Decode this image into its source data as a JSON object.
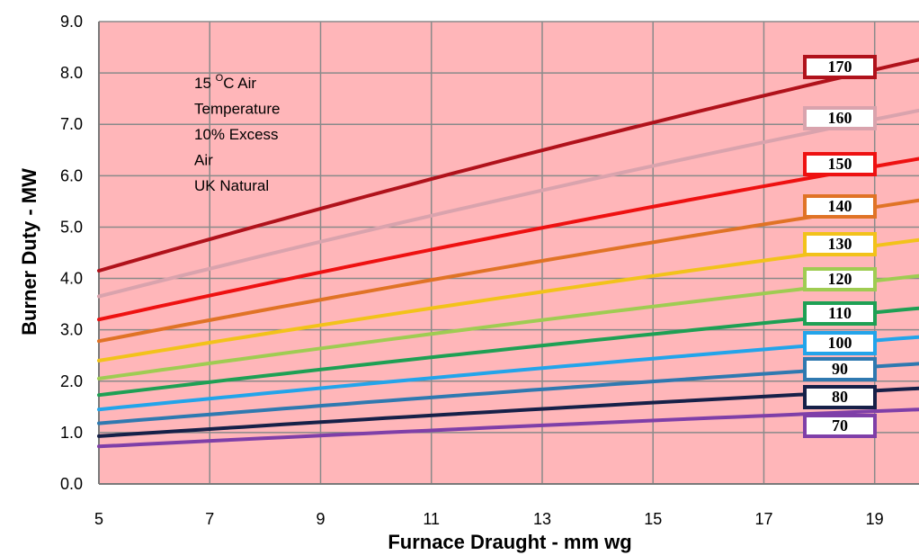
{
  "chart_data": {
    "type": "line",
    "title": "",
    "xlabel": "Furnace Draught - mm wg",
    "ylabel": "Burner Duty - MW",
    "xlim": [
      5,
      19.8
    ],
    "ylim": [
      0,
      9
    ],
    "xticks": [
      5,
      7,
      9,
      11,
      13,
      15,
      17,
      19
    ],
    "yticks": [
      "0.0",
      "1.0",
      "2.0",
      "3.0",
      "4.0",
      "5.0",
      "6.0",
      "7.0",
      "8.0",
      "9.0"
    ],
    "grid": true,
    "plot_background": "#ffb6b9",
    "annotation_lines": [
      {
        "text": "15 ",
        "sup": "O",
        "rest": "C Air"
      },
      {
        "text": "Temperature"
      },
      {
        "text": "10% Excess"
      },
      {
        "text": "Air"
      },
      {
        "text": "UK Natural"
      }
    ],
    "series": [
      {
        "name": "170",
        "color": "#b0121b",
        "x": [
          5,
          19.8
        ],
        "y": [
          4.15,
          8.26
        ]
      },
      {
        "name": "160",
        "color": "#d9a3ad",
        "x": [
          5,
          19.8
        ],
        "y": [
          3.65,
          7.27
        ]
      },
      {
        "name": "150",
        "color": "#ee1111",
        "x": [
          5,
          19.8
        ],
        "y": [
          3.2,
          6.33
        ]
      },
      {
        "name": "140",
        "color": "#e07326",
        "x": [
          5,
          19.8
        ],
        "y": [
          2.78,
          5.52
        ]
      },
      {
        "name": "130",
        "color": "#f2c21a",
        "x": [
          5,
          19.8
        ],
        "y": [
          2.4,
          4.75
        ]
      },
      {
        "name": "120",
        "color": "#9fcc52",
        "x": [
          5,
          19.8
        ],
        "y": [
          2.05,
          4.05
        ]
      },
      {
        "name": "110",
        "color": "#1ea054",
        "x": [
          5,
          19.8
        ],
        "y": [
          1.73,
          3.42
        ]
      },
      {
        "name": "100",
        "color": "#23a4ea",
        "x": [
          5,
          19.8
        ],
        "y": [
          1.45,
          2.86
        ]
      },
      {
        "name": "90",
        "color": "#2f79b0",
        "x": [
          5,
          19.8
        ],
        "y": [
          1.18,
          2.34
        ]
      },
      {
        "name": "80",
        "color": "#162048",
        "x": [
          5,
          19.8
        ],
        "y": [
          0.93,
          1.86
        ]
      },
      {
        "name": "70",
        "color": "#7f3fa8",
        "x": [
          5,
          19.8
        ],
        "y": [
          0.73,
          1.45
        ]
      }
    ]
  }
}
